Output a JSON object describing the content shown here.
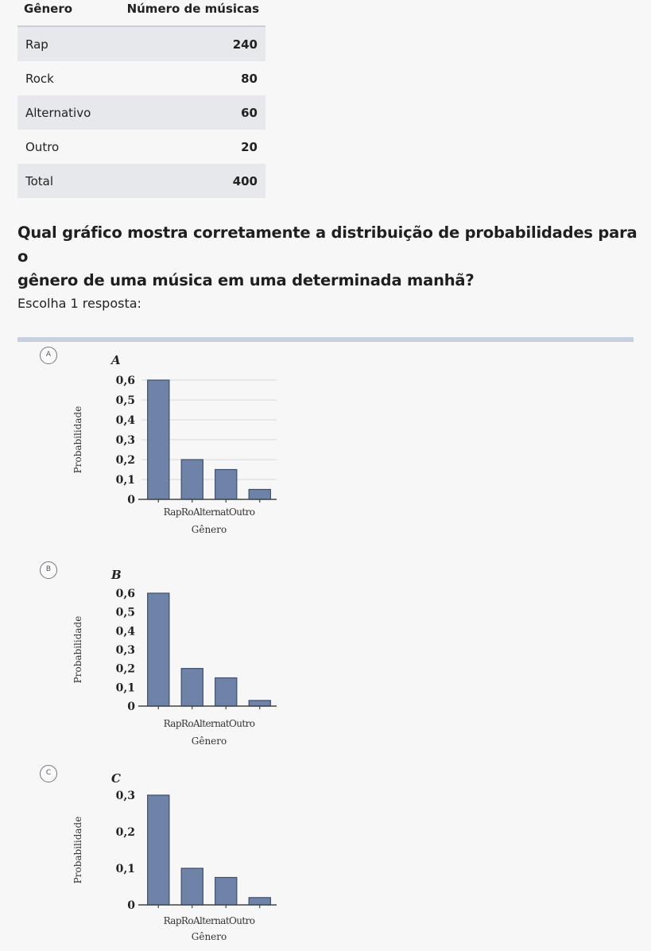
{
  "table": {
    "header": [
      "Gênero",
      "Número de músicas"
    ],
    "rows": [
      {
        "genre": "Rap",
        "count": "240"
      },
      {
        "genre": "Rock",
        "count": "80"
      },
      {
        "genre": "Alternativo",
        "count": "60"
      },
      {
        "genre": "Outro",
        "count": "20"
      },
      {
        "genre": "Total",
        "count": "400"
      }
    ]
  },
  "question": {
    "line1": "Qual gráfico mostra corretamente a distribuição de probabilidades para o",
    "line2": "gênero de uma música em uma determinada manhã?",
    "instruction": "Escolha 1 resposta:"
  },
  "options": [
    {
      "radio_label": "A",
      "chart_data": {
        "type": "bar",
        "title": "A",
        "categories": [
          "Rap",
          "Rock",
          "Alternativo",
          "Outro"
        ],
        "tick_label_text": "RapRoAlternatOutro",
        "values": [
          0.6,
          0.2,
          0.15,
          0.05
        ],
        "xlabel": "Gênero",
        "ylabel": "Probabilidade",
        "yticks": [
          "0",
          "0,1",
          "0,2",
          "0,3",
          "0,4",
          "0,5",
          "0,6"
        ],
        "ylim": [
          0,
          0.6
        ],
        "grid": true
      }
    },
    {
      "radio_label": "B",
      "chart_data": {
        "type": "bar",
        "title": "B",
        "categories": [
          "Rap",
          "Rock",
          "Alternativo",
          "Outro"
        ],
        "tick_label_text": "RapRoAlternatOutro",
        "values": [
          0.6,
          0.2,
          0.15,
          0.03
        ],
        "xlabel": "Gênero",
        "ylabel": "Probabilidade",
        "yticks": [
          "0",
          "0,1",
          "0,2",
          "0,3",
          "0,4",
          "0,5",
          "0,6"
        ],
        "ylim": [
          0,
          0.6
        ],
        "grid": false
      }
    },
    {
      "radio_label": "C",
      "chart_data": {
        "type": "bar",
        "title": "C",
        "categories": [
          "Rap",
          "Rock",
          "Alternativo",
          "Outro"
        ],
        "tick_label_text": "RapRoAlternatOutro",
        "values": [
          0.3,
          0.1,
          0.075,
          0.02
        ],
        "xlabel": "Gênero",
        "ylabel": "Probabilidade",
        "yticks": [
          "0",
          "0,1",
          "0,2",
          "0,3"
        ],
        "ylim": [
          0,
          0.3
        ],
        "grid": false
      }
    }
  ],
  "colors": {
    "bar_fill": "#6f82a8",
    "bar_stroke": "#3f4f70",
    "axis": "#444444",
    "divider": "#c6d0de",
    "row_shade": "#e6e8ec"
  }
}
